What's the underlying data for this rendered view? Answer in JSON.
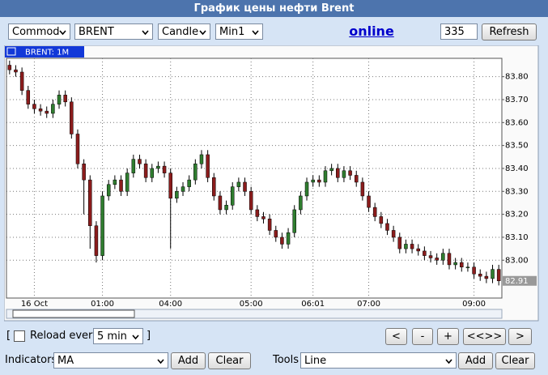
{
  "header": {
    "title": "График цены нефти Brent"
  },
  "toolbar": {
    "market": "Commod",
    "symbol": "BRENT",
    "chart_type": "Candle",
    "period": "Min1",
    "online": "online",
    "bars": "335",
    "refresh": "Refresh"
  },
  "chart_data": {
    "type": "candlestick",
    "tab_label": "BRENT: 1M",
    "categories": [
      null,
      null,
      null,
      null,
      "16 Oct",
      null,
      null,
      null,
      null,
      null,
      null,
      null,
      null,
      null,
      null,
      "01:00",
      null,
      null,
      null,
      null,
      null,
      null,
      null,
      null,
      null,
      null,
      "04:00",
      null,
      null,
      null,
      null,
      null,
      null,
      null,
      null,
      null,
      null,
      null,
      null,
      "05:00",
      null,
      null,
      null,
      null,
      null,
      null,
      null,
      null,
      null,
      "06:01",
      null,
      null,
      null,
      null,
      null,
      null,
      null,
      null,
      "07:00",
      null,
      null,
      null,
      null,
      null,
      null,
      null,
      null,
      null,
      null,
      null,
      null,
      null,
      null,
      null,
      null,
      "09:00",
      null,
      null,
      null,
      null
    ],
    "open": [
      83.85,
      83.83,
      83.82,
      83.74,
      83.68,
      83.66,
      83.65,
      83.64,
      83.68,
      83.72,
      83.69,
      83.55,
      83.42,
      83.35,
      83.15,
      83.02,
      83.28,
      83.33,
      83.35,
      83.3,
      83.38,
      83.44,
      83.42,
      83.36,
      83.4,
      83.41,
      83.38,
      83.27,
      83.3,
      83.32,
      83.35,
      83.42,
      83.46,
      83.36,
      83.28,
      83.22,
      83.24,
      83.32,
      83.34,
      83.3,
      83.22,
      83.19,
      83.18,
      83.13,
      83.1,
      83.07,
      83.12,
      83.22,
      83.28,
      83.34,
      83.35,
      83.34,
      83.39,
      83.4,
      83.36,
      83.39,
      83.37,
      83.34,
      83.28,
      83.23,
      83.19,
      83.16,
      83.13,
      83.1,
      83.05,
      83.07,
      83.05,
      83.04,
      83.02,
      83.01,
      83.0,
      83.03,
      82.98,
      82.99,
      82.97,
      82.97,
      82.94,
      82.93,
      82.92,
      82.96
    ],
    "high": [
      83.87,
      83.85,
      83.84,
      83.76,
      83.7,
      83.68,
      83.67,
      83.7,
      83.74,
      83.74,
      83.71,
      83.57,
      83.44,
      83.37,
      83.17,
      83.3,
      83.35,
      83.37,
      83.37,
      83.4,
      83.46,
      83.46,
      83.44,
      83.42,
      83.43,
      83.43,
      83.4,
      83.32,
      83.34,
      83.37,
      83.44,
      83.48,
      83.48,
      83.38,
      83.3,
      83.26,
      83.34,
      83.36,
      83.36,
      83.32,
      83.24,
      83.21,
      83.2,
      83.15,
      83.12,
      83.14,
      83.24,
      83.3,
      83.36,
      83.37,
      83.37,
      83.41,
      83.42,
      83.42,
      83.41,
      83.41,
      83.39,
      83.36,
      83.3,
      83.25,
      83.21,
      83.18,
      83.15,
      83.12,
      83.09,
      83.09,
      83.07,
      83.06,
      83.04,
      83.03,
      83.05,
      83.05,
      83.01,
      83.01,
      82.99,
      82.99,
      82.96,
      82.95,
      82.98,
      82.98
    ],
    "low": [
      83.81,
      83.8,
      83.72,
      83.66,
      83.64,
      83.63,
      83.62,
      83.62,
      83.66,
      83.67,
      83.53,
      83.4,
      83.2,
      83.05,
      82.99,
      83.0,
      83.26,
      83.31,
      83.28,
      83.28,
      83.36,
      83.4,
      83.34,
      83.34,
      83.38,
      83.36,
      83.05,
      83.25,
      83.28,
      83.3,
      83.33,
      83.4,
      83.34,
      83.26,
      83.2,
      83.2,
      83.22,
      83.3,
      83.28,
      83.2,
      83.17,
      83.16,
      83.11,
      83.08,
      83.05,
      83.05,
      83.1,
      83.2,
      83.26,
      83.32,
      83.32,
      83.32,
      83.37,
      83.34,
      83.34,
      83.35,
      83.32,
      83.26,
      83.21,
      83.17,
      83.14,
      83.11,
      83.08,
      83.03,
      83.03,
      83.03,
      83.02,
      83.0,
      82.99,
      82.98,
      82.98,
      82.96,
      82.96,
      82.95,
      82.95,
      82.92,
      82.91,
      82.9,
      82.9,
      82.89
    ],
    "close": [
      83.83,
      83.82,
      83.74,
      83.68,
      83.66,
      83.65,
      83.64,
      83.68,
      83.72,
      83.69,
      83.55,
      83.42,
      83.35,
      83.15,
      83.02,
      83.28,
      83.33,
      83.35,
      83.3,
      83.38,
      83.44,
      83.42,
      83.36,
      83.4,
      83.41,
      83.38,
      83.27,
      83.3,
      83.32,
      83.35,
      83.42,
      83.46,
      83.36,
      83.28,
      83.22,
      83.24,
      83.32,
      83.34,
      83.3,
      83.22,
      83.19,
      83.18,
      83.13,
      83.1,
      83.07,
      83.12,
      83.22,
      83.28,
      83.34,
      83.35,
      83.34,
      83.39,
      83.4,
      83.36,
      83.39,
      83.37,
      83.34,
      83.28,
      83.23,
      83.19,
      83.16,
      83.13,
      83.1,
      83.05,
      83.07,
      83.05,
      83.04,
      83.02,
      83.01,
      83.0,
      83.03,
      82.98,
      82.99,
      82.97,
      82.97,
      82.94,
      82.93,
      82.92,
      82.96,
      82.91
    ],
    "up_color": "#2f7d2f",
    "down_color": "#8b1c1c",
    "ylim": [
      82.835,
      83.88
    ],
    "yticks": [
      {
        "value": 83.8,
        "label": "83.80"
      },
      {
        "value": 83.7,
        "label": "83.70"
      },
      {
        "value": 83.6,
        "label": "83.60"
      },
      {
        "value": 83.5,
        "label": "83.50"
      },
      {
        "value": 83.4,
        "label": "83.40"
      },
      {
        "value": 83.3,
        "label": "83.30"
      },
      {
        "value": 83.2,
        "label": "83.20"
      },
      {
        "value": 83.1,
        "label": "83.10"
      },
      {
        "value": 83.0,
        "label": "83.00"
      }
    ],
    "grid": true
  },
  "controls": {
    "open_bracket": "[",
    "reload_label": "Reload every",
    "reload_interval": "5 min",
    "close_bracket": "]",
    "nav": [
      "<",
      "-",
      "+",
      "<<>>",
      ">"
    ],
    "indicators_label": "Indicators",
    "indicator": "MA",
    "add": "Add",
    "clear": "Clear",
    "tools_label": "Tools",
    "tool": "Line"
  }
}
